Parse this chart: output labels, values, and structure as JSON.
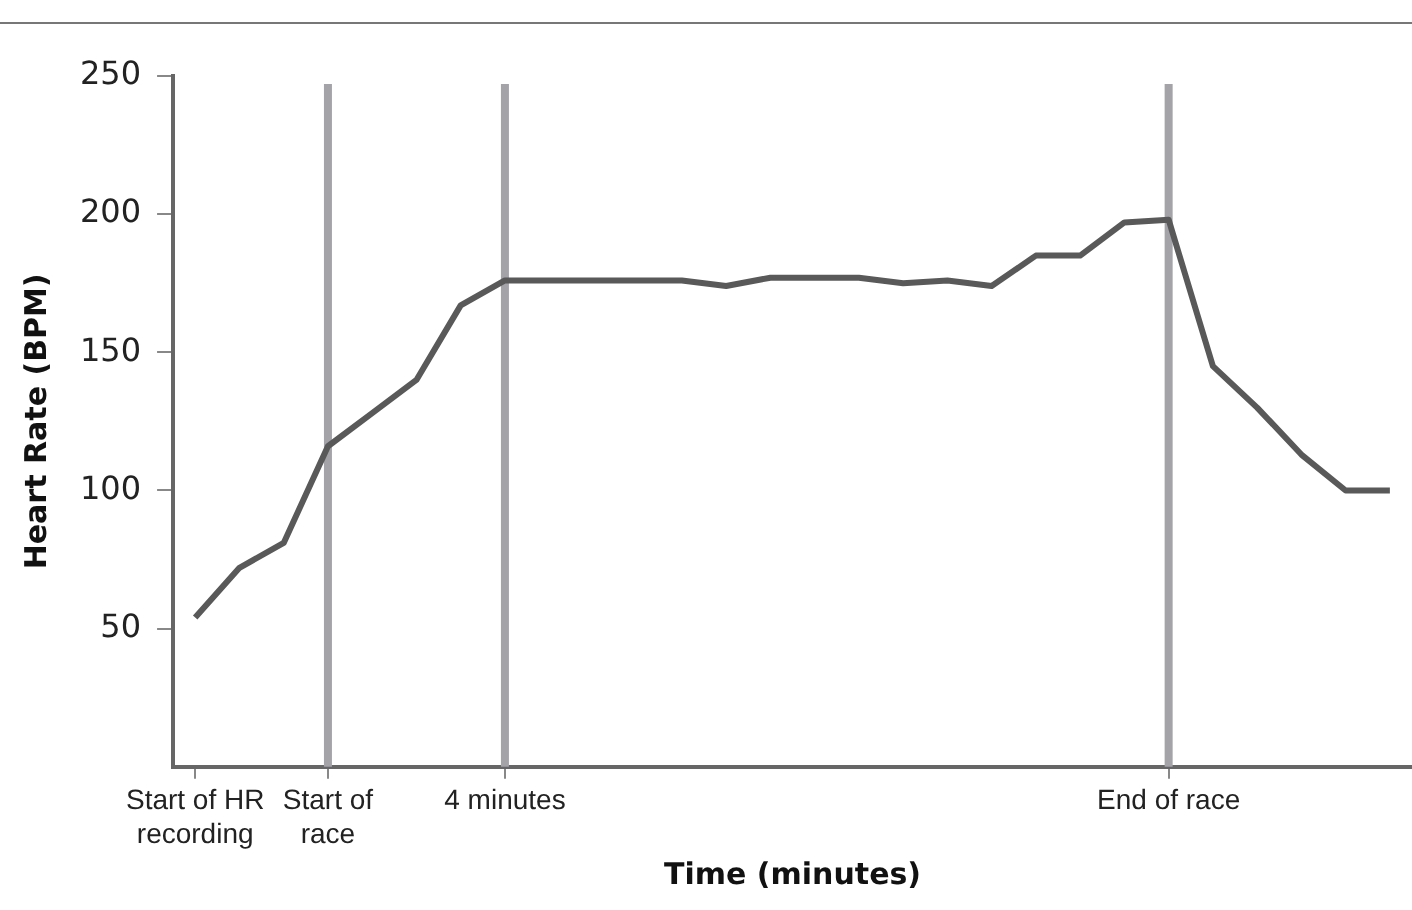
{
  "chart_data": {
    "type": "line",
    "xlabel": "Time (minutes)",
    "ylabel": "Heart Rate (BPM)",
    "categories": [
      "Start of HR recording",
      null,
      null,
      "Start of race",
      null,
      null,
      null,
      "4 minutes",
      null,
      null,
      null,
      null,
      null,
      null,
      null,
      null,
      null,
      null,
      null,
      null,
      null,
      null,
      "End of race",
      null,
      null,
      null,
      null,
      null
    ],
    "series": [
      {
        "color": "#595959",
        "values": [
          54,
          72,
          81,
          116,
          128,
          140,
          167,
          176,
          176,
          176,
          176,
          176,
          174,
          177,
          177,
          177,
          175,
          176,
          174,
          185,
          185,
          197,
          198,
          145,
          130,
          113,
          100,
          100
        ]
      }
    ],
    "ylim": [
      0,
      250
    ],
    "yticks": [
      50,
      100,
      150,
      200,
      250
    ],
    "grid": false,
    "legend": false,
    "marker": "none",
    "line_style": "solid",
    "ref_lines": [
      {
        "axis": "x",
        "value": "Start of race",
        "color": "#a3a3a8"
      },
      {
        "axis": "x",
        "value": "4 minutes",
        "color": "#a3a3a8"
      },
      {
        "axis": "x",
        "value": "End of race",
        "color": "#a3a3a8"
      }
    ]
  }
}
